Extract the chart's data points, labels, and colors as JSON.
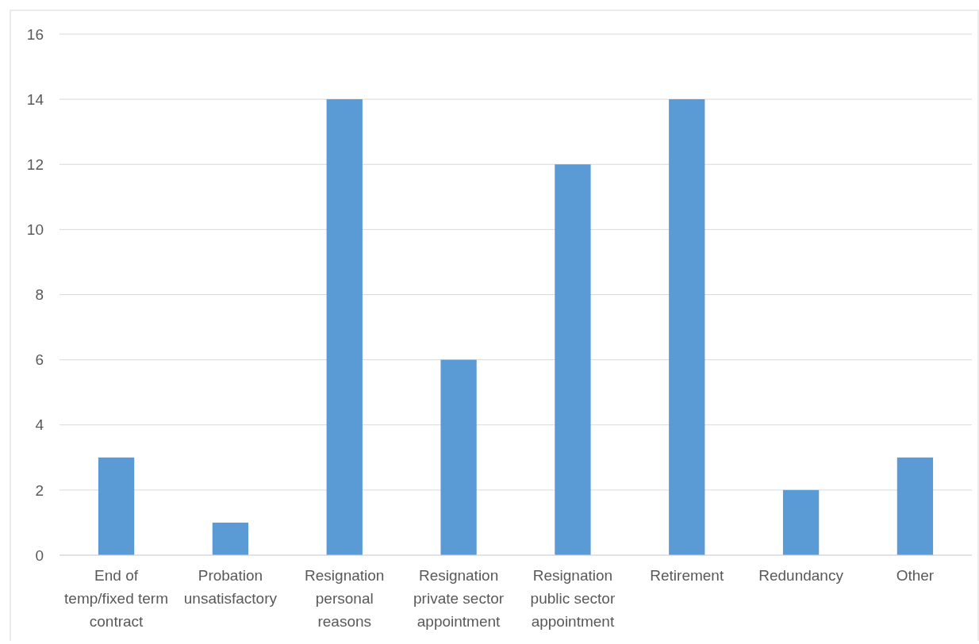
{
  "chart_data": {
    "type": "bar",
    "categories": [
      "End of temp/fixed term contract",
      "Probation unsatisfactory",
      "Resignation personal reasons",
      "Resignation private sector appointment",
      "Resignation public sector appointment",
      "Retirement",
      "Redundancy",
      "Other"
    ],
    "values": [
      3,
      1,
      14,
      6,
      12,
      14,
      2,
      3
    ],
    "color": "#5b9bd5",
    "ylim": [
      0,
      16
    ],
    "yticks": [
      0,
      2,
      4,
      6,
      8,
      10,
      12,
      14,
      16
    ],
    "grid": "y"
  }
}
